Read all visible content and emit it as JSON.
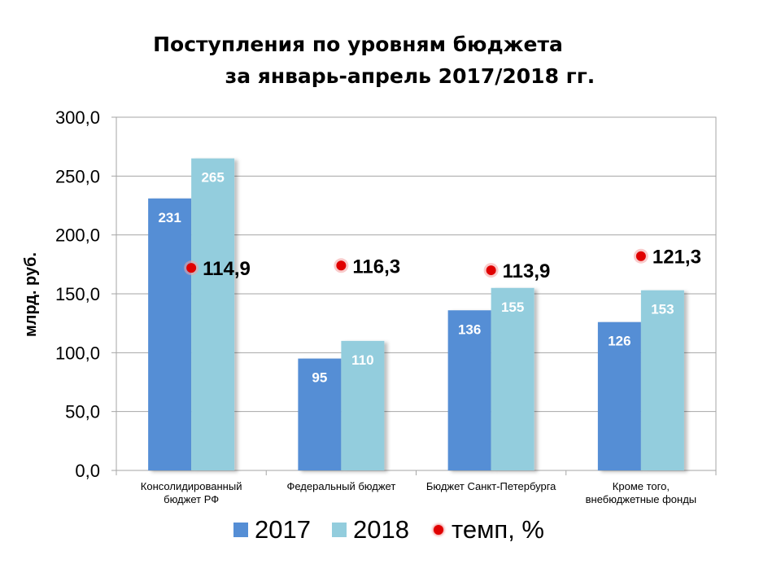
{
  "title_line1": "Поступления по уровням бюджета",
  "title_line2": "за январь-апрель 2017/2018 гг.",
  "chart_data": {
    "type": "bar",
    "ylabel": "млрд. руб.",
    "ylim": [
      0,
      300
    ],
    "yticks": [
      "0,0",
      "50,0",
      "100,0",
      "150,0",
      "200,0",
      "250,0",
      "300,0"
    ],
    "ytick_values": [
      0,
      50,
      100,
      150,
      200,
      250,
      300
    ],
    "categories": [
      [
        "Консолидированный",
        "бюджет РФ"
      ],
      [
        "Федеральный бюджет"
      ],
      [
        "Бюджет Санкт-Петербурга"
      ],
      [
        "Кроме того,",
        "внебюджетные фонды"
      ]
    ],
    "series": [
      {
        "name": "2017",
        "values": [
          231,
          95,
          136,
          126
        ],
        "labels": [
          "231",
          "95",
          "136",
          "126"
        ],
        "color": "#558ED5"
      },
      {
        "name": "2018",
        "values": [
          265,
          110,
          155,
          153
        ],
        "labels": [
          "265",
          "110",
          "155",
          "153"
        ],
        "color": "#93CDDD"
      }
    ],
    "markers": {
      "name": "темп, %",
      "color": "#E00000",
      "values": [
        114.9,
        116.3,
        113.9,
        121.3
      ],
      "labels": [
        "114,9",
        "116,3",
        "113,9",
        "121,3"
      ],
      "plotted_at": [
        172,
        174,
        170,
        182
      ]
    },
    "grid": true,
    "legend": "bottom"
  }
}
